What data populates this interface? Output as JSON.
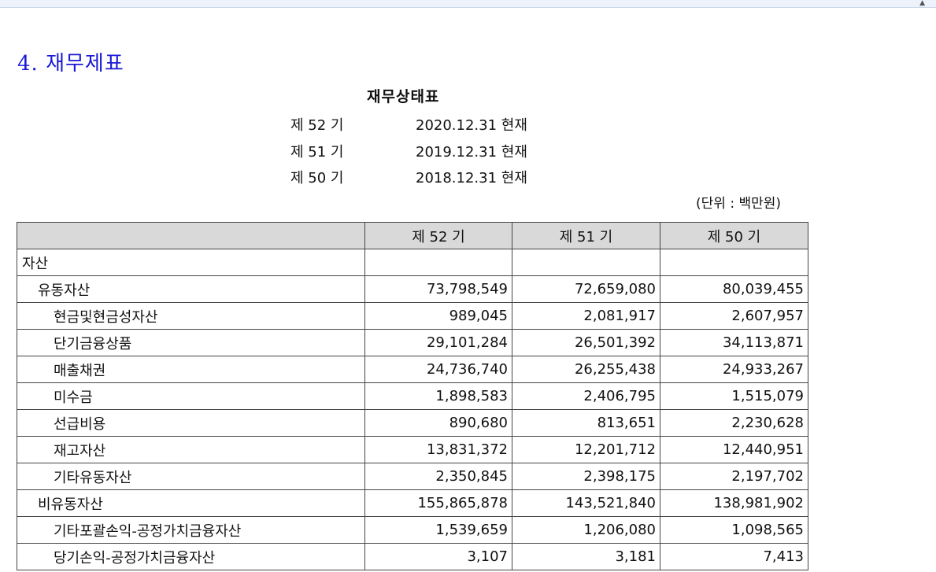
{
  "section_title": "4. 재무제표",
  "doc_title": "재무상태표",
  "periods": [
    {
      "label": "제 52 기",
      "date": "2020.12.31 현재"
    },
    {
      "label": "제 51 기",
      "date": "2019.12.31 현재"
    },
    {
      "label": "제 50 기",
      "date": "2018.12.31 현재"
    }
  ],
  "unit": "(단위 : 백만원)",
  "table": {
    "headers": [
      "",
      "제 52 기",
      "제 51 기",
      "제 50 기"
    ],
    "rows": [
      {
        "label": "자산",
        "level": 0,
        "values": [
          "",
          "",
          ""
        ]
      },
      {
        "label": "유동자산",
        "level": 1,
        "values": [
          "73,798,549",
          "72,659,080",
          "80,039,455"
        ]
      },
      {
        "label": "현금및현금성자산",
        "level": 2,
        "values": [
          "989,045",
          "2,081,917",
          "2,607,957"
        ]
      },
      {
        "label": "단기금융상품",
        "level": 2,
        "values": [
          "29,101,284",
          "26,501,392",
          "34,113,871"
        ]
      },
      {
        "label": "매출채권",
        "level": 2,
        "values": [
          "24,736,740",
          "26,255,438",
          "24,933,267"
        ]
      },
      {
        "label": "미수금",
        "level": 2,
        "values": [
          "1,898,583",
          "2,406,795",
          "1,515,079"
        ]
      },
      {
        "label": "선급비용",
        "level": 2,
        "values": [
          "890,680",
          "813,651",
          "2,230,628"
        ]
      },
      {
        "label": "재고자산",
        "level": 2,
        "values": [
          "13,831,372",
          "12,201,712",
          "12,440,951"
        ]
      },
      {
        "label": "기타유동자산",
        "level": 2,
        "values": [
          "2,350,845",
          "2,398,175",
          "2,197,702"
        ]
      },
      {
        "label": "비유동자산",
        "level": 1,
        "values": [
          "155,865,878",
          "143,521,840",
          "138,981,902"
        ]
      },
      {
        "label": "기타포괄손익-공정가치금융자산",
        "level": 2,
        "values": [
          "1,539,659",
          "1,206,080",
          "1,098,565"
        ]
      },
      {
        "label": "당기손익-공정가치금융자산",
        "level": 2,
        "values": [
          "3,107",
          "3,181",
          "7,413"
        ]
      }
    ]
  }
}
